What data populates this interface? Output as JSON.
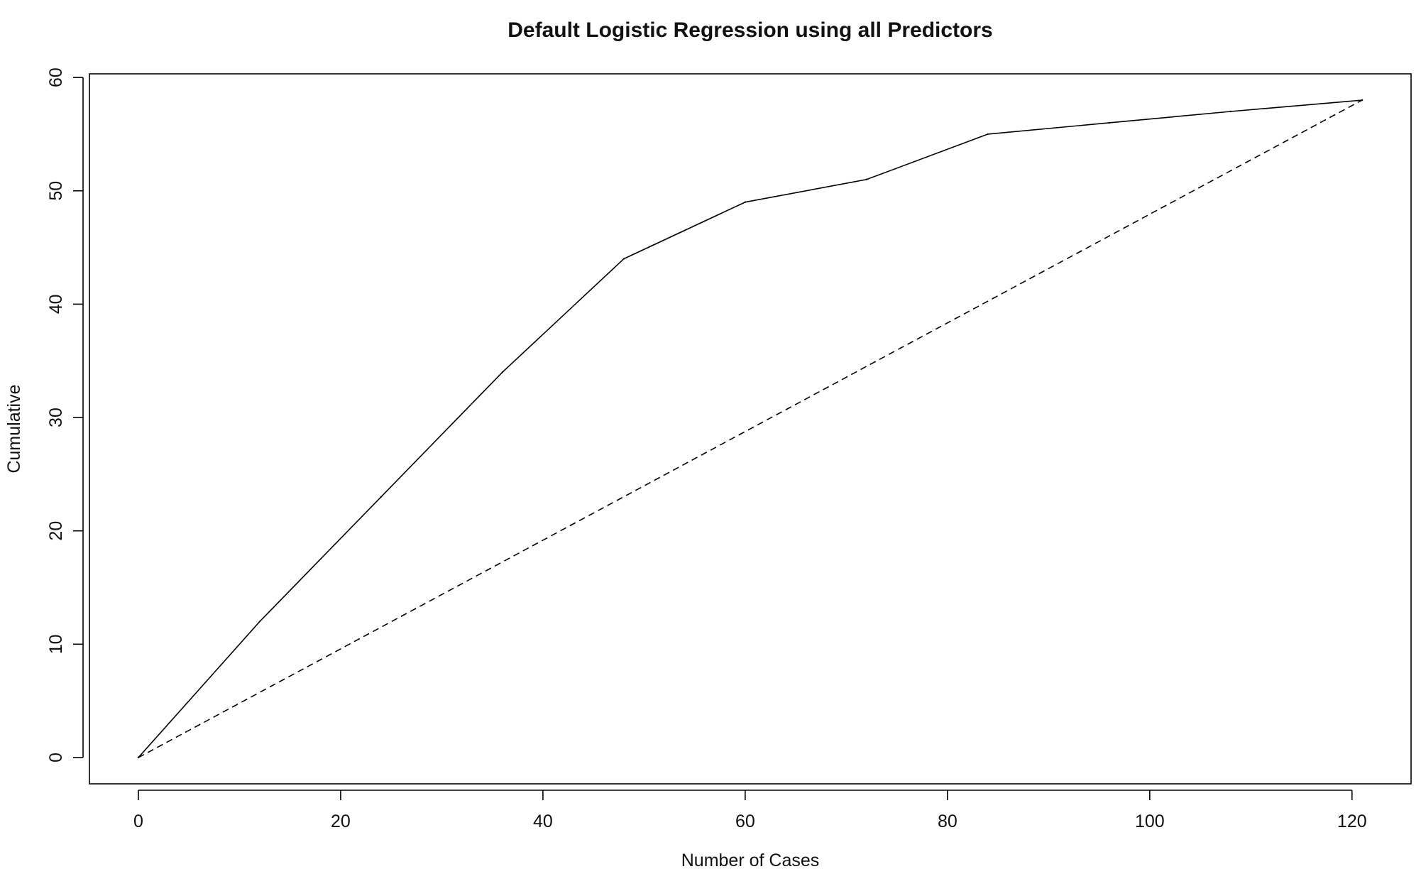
{
  "chart_data": {
    "type": "line",
    "title": "Default Logistic Regression using all Predictors",
    "xlabel": "Number of Cases",
    "ylabel": "Cumulative",
    "xlim": [
      -4.84,
      125.84
    ],
    "ylim": [
      -2.32,
      60.32
    ],
    "x_ticks": [
      0,
      20,
      40,
      60,
      80,
      100,
      120
    ],
    "y_ticks": [
      0,
      10,
      20,
      30,
      40,
      50,
      60
    ],
    "grid": false,
    "legend": "none",
    "series": [
      {
        "style": "solid",
        "color": "#000000",
        "x": [
          0,
          12,
          24,
          36,
          48,
          60,
          72,
          84,
          96,
          108,
          121
        ],
        "y": [
          0,
          12,
          23,
          34,
          44,
          49,
          51,
          55,
          56,
          57,
          58
        ]
      },
      {
        "style": "dashed",
        "color": "#000000",
        "x": [
          0,
          121
        ],
        "y": [
          0,
          58
        ]
      }
    ]
  }
}
